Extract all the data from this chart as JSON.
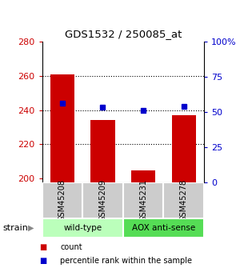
{
  "title": "GDS1532 / 250085_at",
  "samples": [
    "GSM45208",
    "GSM45209",
    "GSM45231",
    "GSM45278"
  ],
  "counts": [
    261,
    234,
    205,
    237
  ],
  "percentiles": [
    56,
    53,
    51,
    54
  ],
  "ylim_left": [
    198,
    280
  ],
  "ylim_right": [
    0,
    100
  ],
  "yticks_left": [
    200,
    220,
    240,
    260,
    280
  ],
  "yticks_right": [
    0,
    25,
    50,
    75,
    100
  ],
  "bar_color": "#cc0000",
  "dot_color": "#0000cc",
  "bar_width": 0.6,
  "groups": [
    {
      "label": "wild-type",
      "samples": [
        0,
        1
      ],
      "color": "#bbffbb"
    },
    {
      "label": "AOX anti-sense",
      "samples": [
        2,
        3
      ],
      "color": "#55dd55"
    }
  ],
  "strain_label": "strain",
  "legend_items": [
    {
      "color": "#cc0000",
      "label": "count"
    },
    {
      "color": "#0000cc",
      "label": "percentile rank within the sample"
    }
  ],
  "background_color": "#ffffff",
  "tick_color_left": "#cc0000",
  "tick_color_right": "#0000cc",
  "gridlines": [
    220,
    240,
    260
  ]
}
